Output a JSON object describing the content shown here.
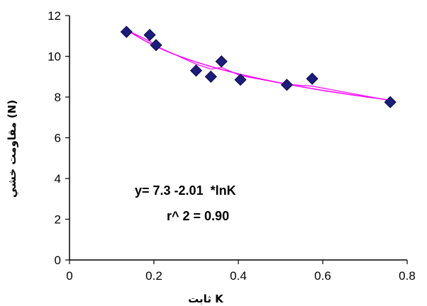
{
  "chart_data": {
    "type": "scatter",
    "xlabel": "ثابت K",
    "ylabel": "مقاومت خشي (N)",
    "xlim": [
      0,
      0.8
    ],
    "ylim": [
      0,
      12
    ],
    "x_ticks": [
      "0",
      "0.2",
      "0.4",
      "0.6",
      "0.8"
    ],
    "y_ticks": [
      "0",
      "2",
      "4",
      "6",
      "8",
      "10",
      "12"
    ],
    "grid": false,
    "points": [
      {
        "x": 0.135,
        "y": 11.2
      },
      {
        "x": 0.19,
        "y": 11.05
      },
      {
        "x": 0.205,
        "y": 10.55
      },
      {
        "x": 0.3,
        "y": 9.3
      },
      {
        "x": 0.335,
        "y": 9.0
      },
      {
        "x": 0.36,
        "y": 9.75
      },
      {
        "x": 0.405,
        "y": 8.85
      },
      {
        "x": 0.515,
        "y": 8.6
      },
      {
        "x": 0.575,
        "y": 8.9
      },
      {
        "x": 0.76,
        "y": 7.75
      }
    ],
    "fit": {
      "type": "log",
      "a": 7.3,
      "b": -2.01
    },
    "connect_line": true,
    "annotations": [
      "y= 7.3 -2.01  *lnK",
      "r^ 2 = 0.90"
    ],
    "colors": {
      "marker": "#1c1c7a",
      "line": "#ff00ff",
      "axis": "#000000"
    }
  }
}
